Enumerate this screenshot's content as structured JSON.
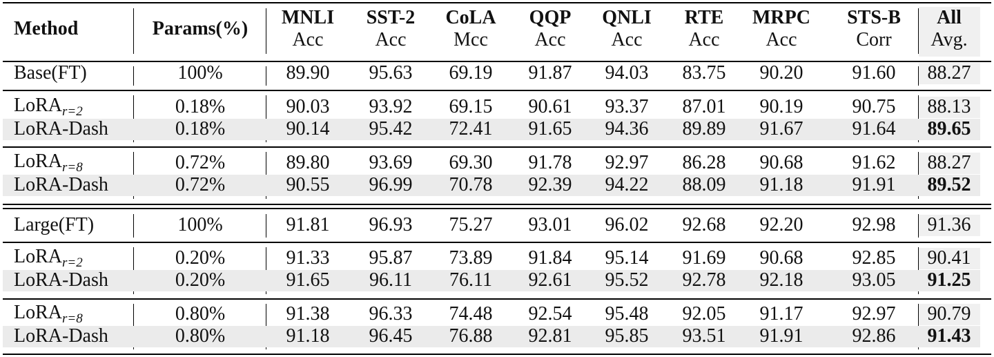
{
  "header": {
    "columns": [
      {
        "name": "Method"
      },
      {
        "name": "Params(%)"
      },
      {
        "name": "MNLI",
        "metric": "Acc"
      },
      {
        "name": "SST-2",
        "metric": "Acc"
      },
      {
        "name": "CoLA",
        "metric": "Mcc"
      },
      {
        "name": "QQP",
        "metric": "Acc"
      },
      {
        "name": "QNLI",
        "metric": "Acc"
      },
      {
        "name": "RTE",
        "metric": "Acc"
      },
      {
        "name": "MRPC",
        "metric": "Acc"
      },
      {
        "name": "STS-B",
        "metric": "Corr"
      },
      {
        "name": "All",
        "metric": "Avg."
      }
    ]
  },
  "sections": [
    {
      "groups": [
        {
          "rows": [
            {
              "method": "Base(FT)",
              "params": "100%",
              "scores": [
                "89.90",
                "95.63",
                "69.19",
                "91.87",
                "94.03",
                "83.75",
                "90.20",
                "91.60"
              ],
              "avg": "88.27"
            }
          ]
        },
        {
          "rows": [
            {
              "method": "LoRA",
              "subscript": "r=2",
              "params": "0.18%",
              "scores": [
                "90.03",
                "93.92",
                "69.15",
                "90.61",
                "93.37",
                "87.01",
                "90.19",
                "90.75"
              ],
              "avg": "88.13"
            },
            {
              "method": "LoRA-Dash",
              "params": "0.18%",
              "scores": [
                "90.14",
                "95.42",
                "72.41",
                "91.65",
                "94.36",
                "89.89",
                "91.67",
                "91.64"
              ],
              "avg": "89.65",
              "best": true,
              "highlight": true
            }
          ]
        },
        {
          "rows": [
            {
              "method": "LoRA",
              "subscript": "r=8",
              "params": "0.72%",
              "scores": [
                "89.80",
                "93.69",
                "69.30",
                "91.78",
                "92.97",
                "86.28",
                "90.68",
                "91.62"
              ],
              "avg": "88.27"
            },
            {
              "method": "LoRA-Dash",
              "params": "0.72%",
              "scores": [
                "90.55",
                "96.99",
                "70.78",
                "92.39",
                "94.22",
                "88.09",
                "91.18",
                "91.91"
              ],
              "avg": "89.52",
              "best": true,
              "highlight": true
            }
          ]
        }
      ]
    },
    {
      "groups": [
        {
          "rows": [
            {
              "method": "Large(FT)",
              "params": "100%",
              "scores": [
                "91.81",
                "96.93",
                "75.27",
                "93.01",
                "96.02",
                "92.68",
                "92.20",
                "92.98"
              ],
              "avg": "91.36"
            }
          ]
        },
        {
          "rows": [
            {
              "method": "LoRA",
              "subscript": "r=2",
              "params": "0.20%",
              "scores": [
                "91.33",
                "95.87",
                "73.89",
                "91.84",
                "95.14",
                "91.69",
                "90.68",
                "92.85"
              ],
              "avg": "90.41"
            },
            {
              "method": "LoRA-Dash",
              "params": "0.20%",
              "scores": [
                "91.65",
                "96.11",
                "76.11",
                "92.61",
                "95.52",
                "92.78",
                "92.18",
                "93.05"
              ],
              "avg": "91.25",
              "best": true,
              "highlight": true
            }
          ]
        },
        {
          "rows": [
            {
              "method": "LoRA",
              "subscript": "r=8",
              "params": "0.80%",
              "scores": [
                "91.38",
                "96.33",
                "74.48",
                "92.54",
                "95.48",
                "92.05",
                "91.17",
                "92.97"
              ],
              "avg": "90.79"
            },
            {
              "method": "LoRA-Dash",
              "params": "0.80%",
              "scores": [
                "91.18",
                "96.45",
                "76.88",
                "92.81",
                "95.85",
                "93.51",
                "91.91",
                "92.86"
              ],
              "avg": "91.43",
              "best": true,
              "highlight": true
            }
          ]
        }
      ]
    }
  ]
}
